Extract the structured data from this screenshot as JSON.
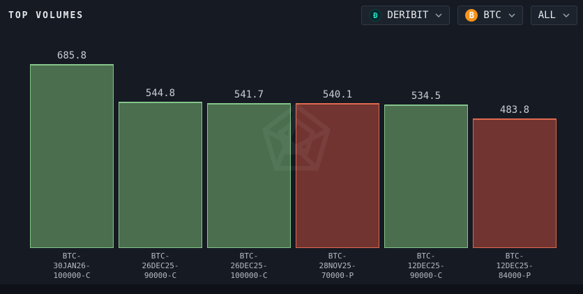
{
  "header": {
    "title": "TOP VOLUMES"
  },
  "filters": {
    "exchange": {
      "label": "DERIBIT",
      "icon": "deribit-icon",
      "icon_glyph": "Đ"
    },
    "asset": {
      "label": "BTC",
      "icon": "bitcoin-icon",
      "icon_glyph": "B"
    },
    "range": {
      "label": "ALL"
    }
  },
  "colors": {
    "background": "#151a23",
    "green_fill": "#4a6e4e",
    "green_border": "#86c58a",
    "red_fill": "#713430",
    "red_border": "#df6a4f",
    "deribit_teal": "#2be0c8",
    "bitcoin_orange": "#f7931a"
  },
  "chart_data": {
    "type": "bar",
    "title": "TOP VOLUMES",
    "xlabel": "",
    "ylabel": "",
    "ylim": [
      0,
      770
    ],
    "grid": false,
    "legend": "none",
    "categories": [
      "BTC-30JAN26-100000-C",
      "BTC-26DEC25-90000-C",
      "BTC-26DEC25-100000-C",
      "BTC-28NOV25-70000-P",
      "BTC-12DEC25-90000-C",
      "BTC-12DEC25-84000-P"
    ],
    "values": [
      685.8,
      544.8,
      541.7,
      540.1,
      534.5,
      483.8
    ],
    "bars": [
      {
        "value": "685.8",
        "color": "green",
        "label_lines": [
          "BTC-",
          "30JAN26-",
          "100000-C"
        ]
      },
      {
        "value": "544.8",
        "color": "green",
        "label_lines": [
          "BTC-",
          "26DEC25-",
          "90000-C"
        ]
      },
      {
        "value": "541.7",
        "color": "green",
        "label_lines": [
          "BTC-",
          "26DEC25-",
          "100000-C"
        ]
      },
      {
        "value": "540.1",
        "color": "red",
        "label_lines": [
          "BTC-",
          "28NOV25-",
          "70000-P"
        ]
      },
      {
        "value": "534.5",
        "color": "green",
        "label_lines": [
          "BTC-",
          "12DEC25-",
          "90000-C"
        ]
      },
      {
        "value": "483.8",
        "color": "red",
        "label_lines": [
          "BTC-",
          "12DEC25-",
          "84000-P"
        ]
      }
    ]
  }
}
